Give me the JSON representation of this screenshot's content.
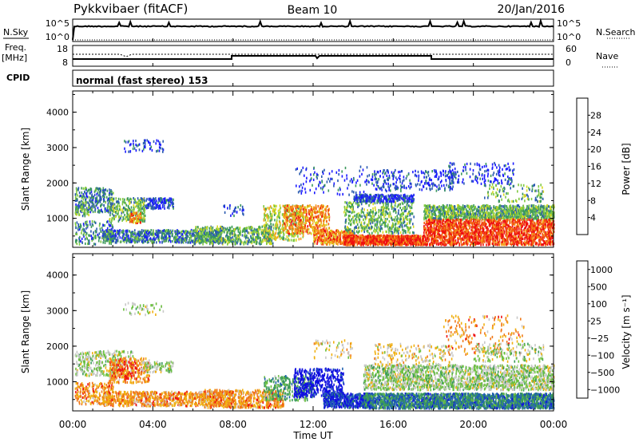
{
  "header": {
    "station": "Pykkvibaer (fitACF)",
    "beam": "Beam 10",
    "date": "20/Jan/2016"
  },
  "top_panels": {
    "nsky_label": "N.Sky",
    "nsky_ticks": [
      "10^5",
      "10^0"
    ],
    "nsearch_label": "N.Search",
    "nsearch_ticks": [
      "10^5",
      "10^0"
    ],
    "freq_label": "Freq.",
    "freq_unit": "[MHz]",
    "freq_ticks": [
      "18",
      "8"
    ],
    "nave_label": "Nave",
    "nave_ticks": [
      "60",
      "0"
    ],
    "cpid_label": "CPID",
    "cpid_value": "normal (fast stereo) 153"
  },
  "chart_data": [
    {
      "type": "heatmap",
      "name": "power",
      "ylabel": "Slant Range [km]",
      "yticks": [
        "4000",
        "3000",
        "2000",
        "1000"
      ],
      "yvals": [
        4000,
        3000,
        2000,
        1000
      ],
      "ylim": [
        180,
        4600
      ],
      "xlim": [
        0,
        24
      ],
      "colorbar_label": "Power [dB]",
      "colorbar_ticks": [
        "28",
        "24",
        "20",
        "16",
        "12",
        "8",
        "4"
      ],
      "colorbar_values": [
        28,
        24,
        20,
        16,
        12,
        8,
        4
      ],
      "colorbar_range": [
        0,
        32
      ],
      "colors": [
        "#1a1aff",
        "#2a5ab0",
        "#3c9a5c",
        "#7fc940",
        "#d8d820",
        "#f5a020",
        "#f26010",
        "#ee1010"
      ]
    },
    {
      "type": "heatmap",
      "name": "velocity",
      "ylabel": "Slant Range [km]",
      "yticks": [
        "4000",
        "3000",
        "2000",
        "1000"
      ],
      "yvals": [
        4000,
        3000,
        2000,
        1000
      ],
      "ylim": [
        180,
        4600
      ],
      "xlim": [
        0,
        24
      ],
      "colorbar_label": "Velocity [m s⁻¹]",
      "colorbar_ticks": [
        "1000",
        "500",
        "100",
        "25",
        "−25",
        "−100",
        "−500",
        "−1000"
      ],
      "colors": [
        "#1010e0",
        "#2060b0",
        "#3a9a5a",
        "#6cc040",
        "#c8c8c8",
        "#f0b010",
        "#f07818",
        "#ee1010"
      ]
    }
  ],
  "xaxis": {
    "label": "Time UT",
    "ticks": [
      "00:00",
      "04:00",
      "08:00",
      "12:00",
      "16:00",
      "20:00",
      "00:00"
    ],
    "tick_hours": [
      0,
      4,
      8,
      12,
      16,
      20,
      24
    ]
  }
}
